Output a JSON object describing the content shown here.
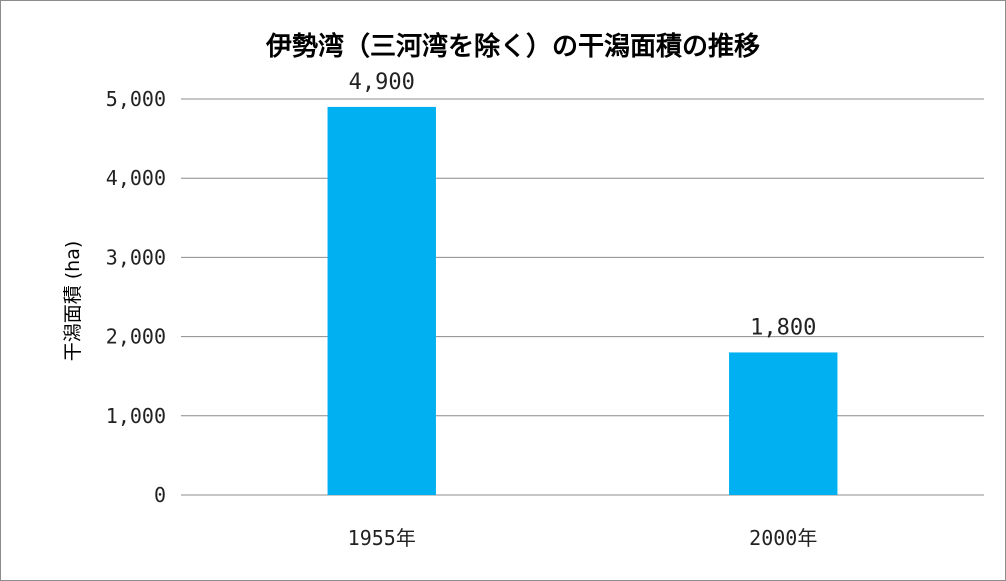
{
  "chart_data": {
    "type": "bar",
    "title": "伊勢湾（三河湾を除く）の干潟面積の推移",
    "ylabel": "干潟面積 (ha)",
    "xlabel": "",
    "categories": [
      "1955年",
      "2000年"
    ],
    "values": [
      4900,
      1800
    ],
    "data_labels": [
      "4,900",
      "1,800"
    ],
    "ylim": [
      0,
      5000
    ],
    "yticks": [
      0,
      1000,
      2000,
      3000,
      4000,
      5000
    ],
    "ytick_labels": [
      "0",
      "1,000",
      "2,000",
      "3,000",
      "4,000",
      "5,000"
    ],
    "grid": true,
    "legend": "none",
    "bar_color": "#00b0f0"
  }
}
